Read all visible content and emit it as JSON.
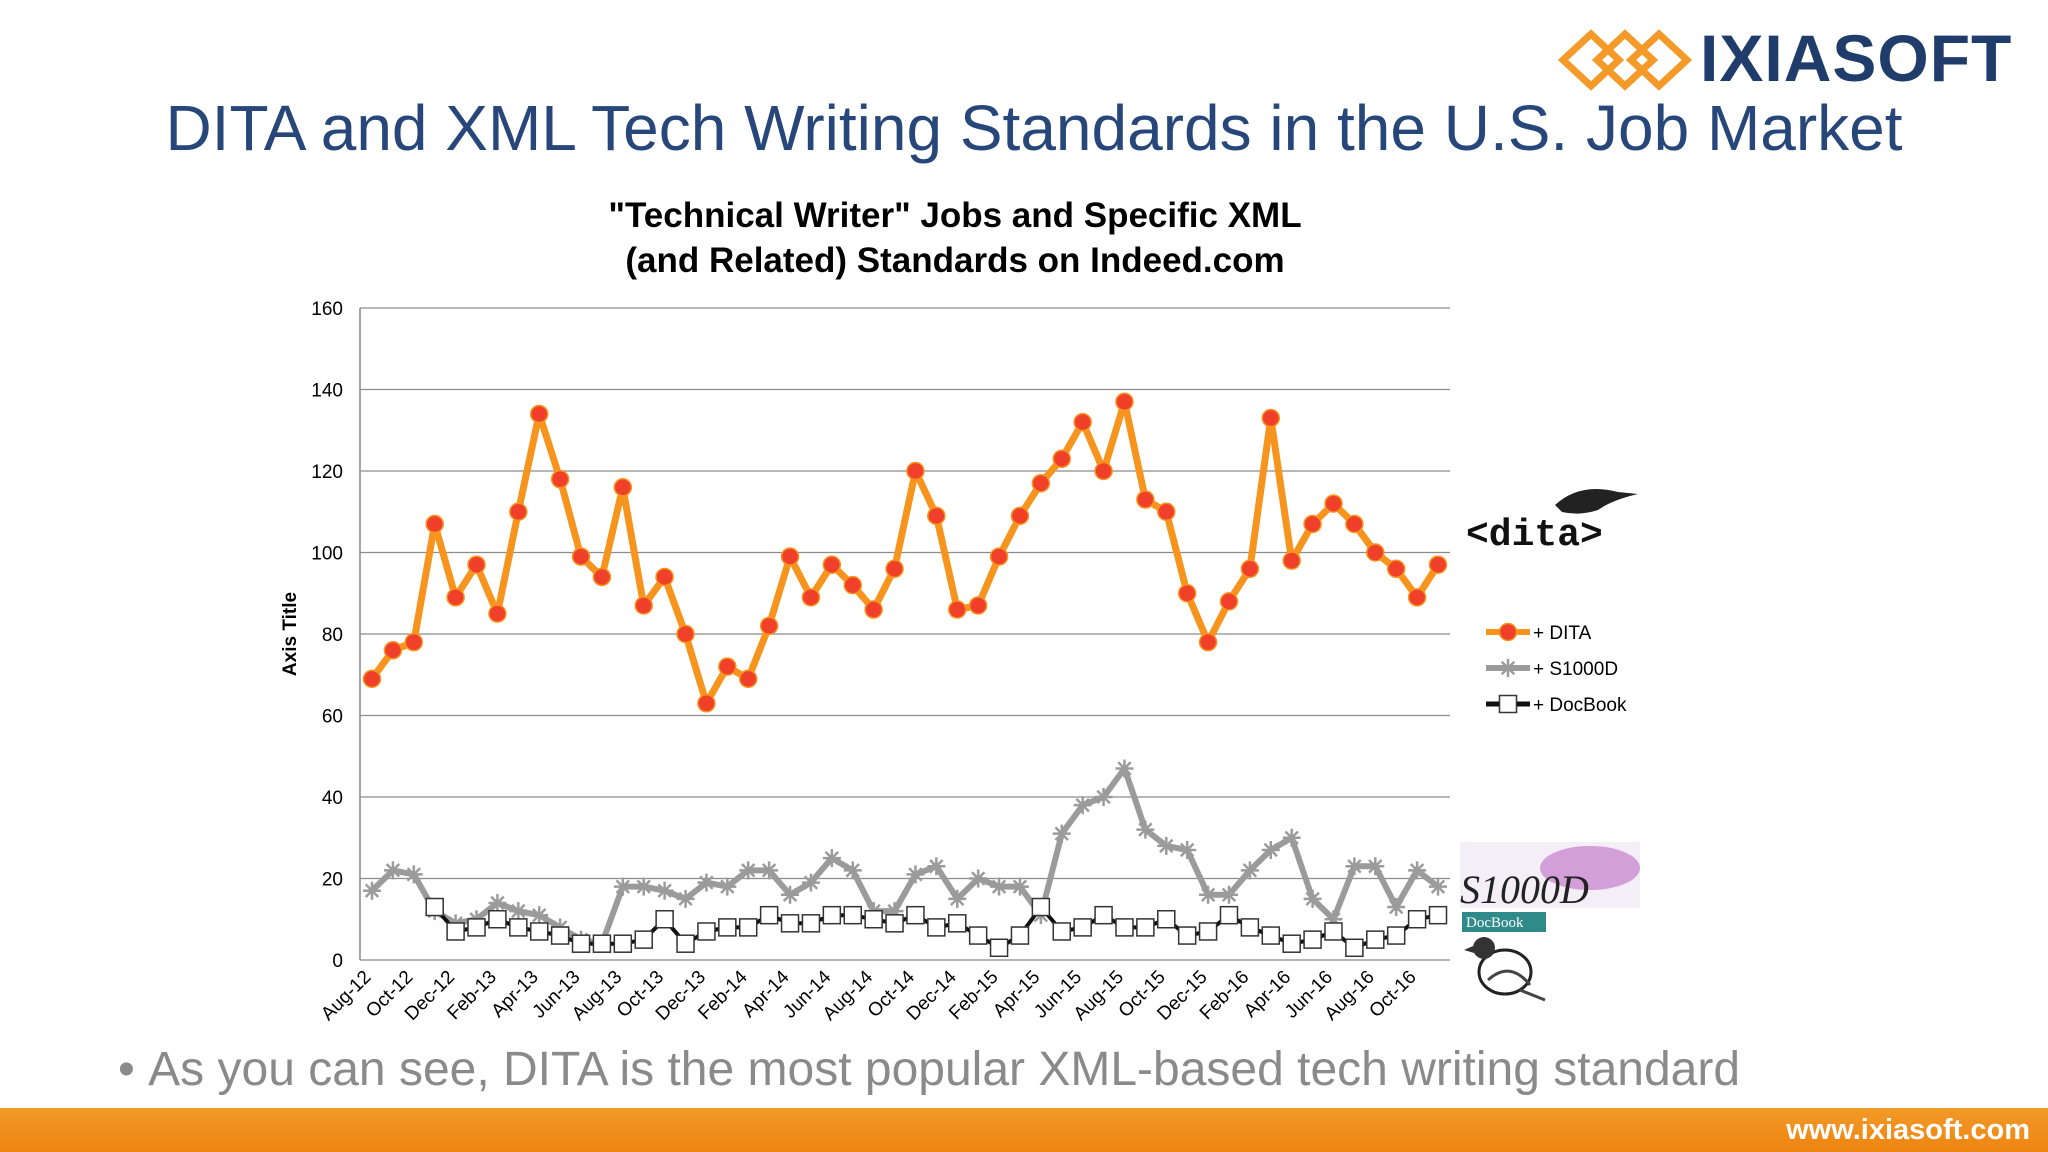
{
  "brand": {
    "name": "IXIASOFT",
    "url": "www.ixiasoft.com",
    "accent": "#1f3c6b",
    "orange": "#f39a28"
  },
  "slide": {
    "title": "DITA and XML Tech Writing Standards in the U.S. Job Market",
    "bullet": "As you can see, DITA is the most popular XML-based tech writing standard"
  },
  "logos": {
    "dita": "<dita>",
    "s1000d": "S1000D",
    "docbook": "DocBook"
  },
  "chart_data": {
    "type": "line",
    "title_lines": [
      "\"Technical Writer\" Jobs and Specific XML",
      "(and Related) Standards on Indeed.com"
    ],
    "ylabel": "Axis Title",
    "xlabel": "",
    "ylim": [
      0,
      160
    ],
    "yticks": [
      0,
      20,
      40,
      60,
      80,
      100,
      120,
      140,
      160
    ],
    "grid": true,
    "legend_position": "right",
    "categories": [
      "Aug-12",
      "Sep-12",
      "Oct-12",
      "Nov-12",
      "Dec-12",
      "Jan-13",
      "Feb-13",
      "Mar-13",
      "Apr-13",
      "May-13",
      "Jun-13",
      "Jul-13",
      "Aug-13",
      "Sep-13",
      "Oct-13",
      "Nov-13",
      "Dec-13",
      "Jan-14",
      "Feb-14",
      "Mar-14",
      "Apr-14",
      "May-14",
      "Jun-14",
      "Jul-14",
      "Aug-14",
      "Sep-14",
      "Oct-14",
      "Nov-14",
      "Dec-14",
      "Jan-15",
      "Feb-15",
      "Mar-15",
      "Apr-15",
      "May-15",
      "Jun-15",
      "Jul-15",
      "Aug-15",
      "Sep-15",
      "Oct-15",
      "Nov-15",
      "Dec-15",
      "Jan-16",
      "Feb-16",
      "Mar-16",
      "Apr-16",
      "May-16",
      "Jun-16",
      "Jul-16",
      "Aug-16",
      "Sep-16",
      "Oct-16",
      "Nov-16"
    ],
    "tick_labels": [
      "Aug-12",
      "Oct-12",
      "Dec-12",
      "Feb-13",
      "Apr-13",
      "Jun-13",
      "Aug-13",
      "Oct-13",
      "Dec-13",
      "Feb-14",
      "Apr-14",
      "Jun-14",
      "Aug-14",
      "Oct-14",
      "Dec-14",
      "Feb-15",
      "Apr-15",
      "Jun-15",
      "Aug-15",
      "Oct-15",
      "Dec-15",
      "Feb-16",
      "Apr-16",
      "Jun-16",
      "Aug-16",
      "Oct-16"
    ],
    "series": [
      {
        "name": "+ DITA",
        "color": "#f7941d",
        "marker": "circle",
        "marker_color": "#f0402a",
        "values": [
          69,
          76,
          78,
          107,
          89,
          97,
          85,
          110,
          134,
          118,
          99,
          94,
          116,
          87,
          94,
          80,
          63,
          72,
          69,
          82,
          99,
          89,
          97,
          92,
          86,
          96,
          120,
          109,
          86,
          87,
          99,
          109,
          117,
          123,
          132,
          120,
          137,
          113,
          110,
          90,
          78,
          88,
          96,
          133,
          98,
          107,
          112,
          107,
          100,
          96,
          89,
          97
        ]
      },
      {
        "name": "+ S1000D",
        "color": "#9b9b9b",
        "marker": "star",
        "marker_color": "#9b9b9b",
        "values": [
          17,
          22,
          21,
          12,
          9,
          10,
          14,
          12,
          11,
          8,
          5,
          4,
          18,
          18,
          17,
          15,
          19,
          18,
          22,
          22,
          16,
          19,
          25,
          22,
          12,
          12,
          21,
          23,
          15,
          20,
          18,
          18,
          11,
          31,
          38,
          40,
          47,
          32,
          28,
          27,
          16,
          16,
          22,
          27,
          30,
          15,
          10,
          23,
          23,
          13,
          22,
          18
        ]
      },
      {
        "name": "+ DocBook",
        "color": "#111111",
        "marker": "square",
        "marker_color": "#ffffff",
        "values": [
          null,
          null,
          null,
          13,
          7,
          8,
          10,
          8,
          7,
          6,
          4,
          4,
          4,
          5,
          10,
          4,
          7,
          8,
          8,
          11,
          9,
          9,
          11,
          11,
          10,
          9,
          11,
          8,
          9,
          6,
          3,
          6,
          13,
          7,
          8,
          11,
          8,
          8,
          10,
          6,
          7,
          11,
          8,
          6,
          4,
          5,
          7,
          3,
          5,
          6,
          10,
          11
        ]
      }
    ]
  }
}
